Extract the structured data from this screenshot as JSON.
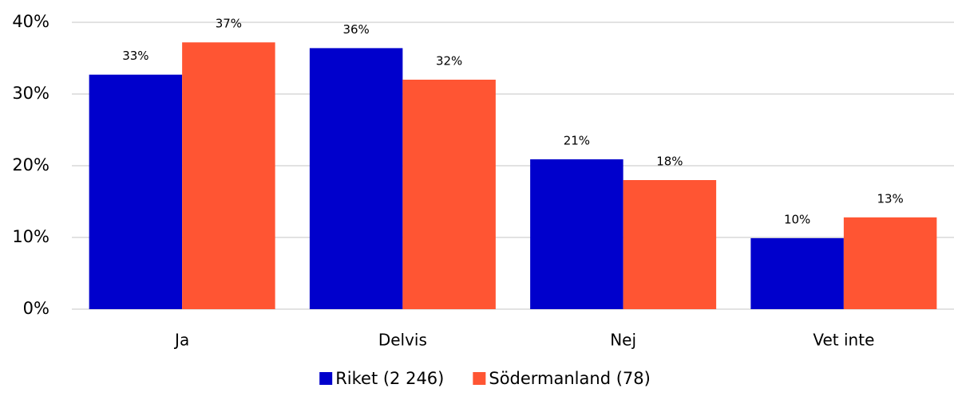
{
  "chart_data": {
    "type": "bar",
    "categories": [
      "Ja",
      "Delvis",
      "Nej",
      "Vet inte"
    ],
    "series": [
      {
        "name": "Riket (2 246)",
        "color": "#0000cc",
        "values": [
          32.7,
          36.4,
          20.9,
          9.9
        ],
        "value_labels": [
          "33%",
          "36%",
          "21%",
          "10%"
        ]
      },
      {
        "name": "Södermanland (78)",
        "color": "#ff5533",
        "values": [
          37.2,
          32.0,
          18.0,
          12.8
        ],
        "value_labels": [
          "37%",
          "32%",
          "18%",
          "13%"
        ]
      }
    ],
    "ylim": [
      0,
      40
    ],
    "yticks": [
      {
        "value": 0,
        "label": "0%"
      },
      {
        "value": 10,
        "label": "10%"
      },
      {
        "value": 20,
        "label": "20%"
      },
      {
        "value": 30,
        "label": "30%"
      },
      {
        "value": 40,
        "label": "40%"
      }
    ],
    "grid": true,
    "legend": "bottom"
  }
}
